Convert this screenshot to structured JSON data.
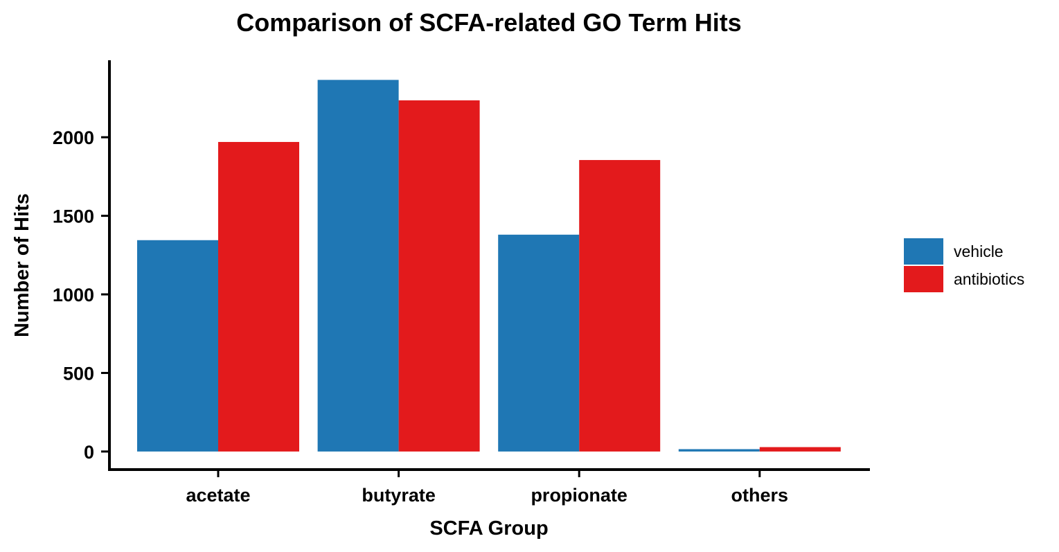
{
  "chart_data": {
    "type": "bar",
    "title": "Comparison of SCFA-related GO Term Hits",
    "xlabel": "SCFA Group",
    "ylabel": "Number of Hits",
    "categories": [
      "acetate",
      "butyrate",
      "propionate",
      "others"
    ],
    "series": [
      {
        "name": "vehicle",
        "color": "#1f77b4",
        "values": [
          1345,
          2365,
          1380,
          15
        ]
      },
      {
        "name": "antibiotics",
        "color": "#e31a1c",
        "values": [
          1970,
          2235,
          1855,
          28
        ]
      }
    ],
    "ylim": [
      -115,
      2490
    ],
    "yticks": [
      0,
      500,
      1000,
      1500,
      2000
    ],
    "ytick_labels": [
      "0",
      "500",
      "1000",
      "1500",
      "2000"
    ],
    "grid": false,
    "legend_position": "right"
  }
}
